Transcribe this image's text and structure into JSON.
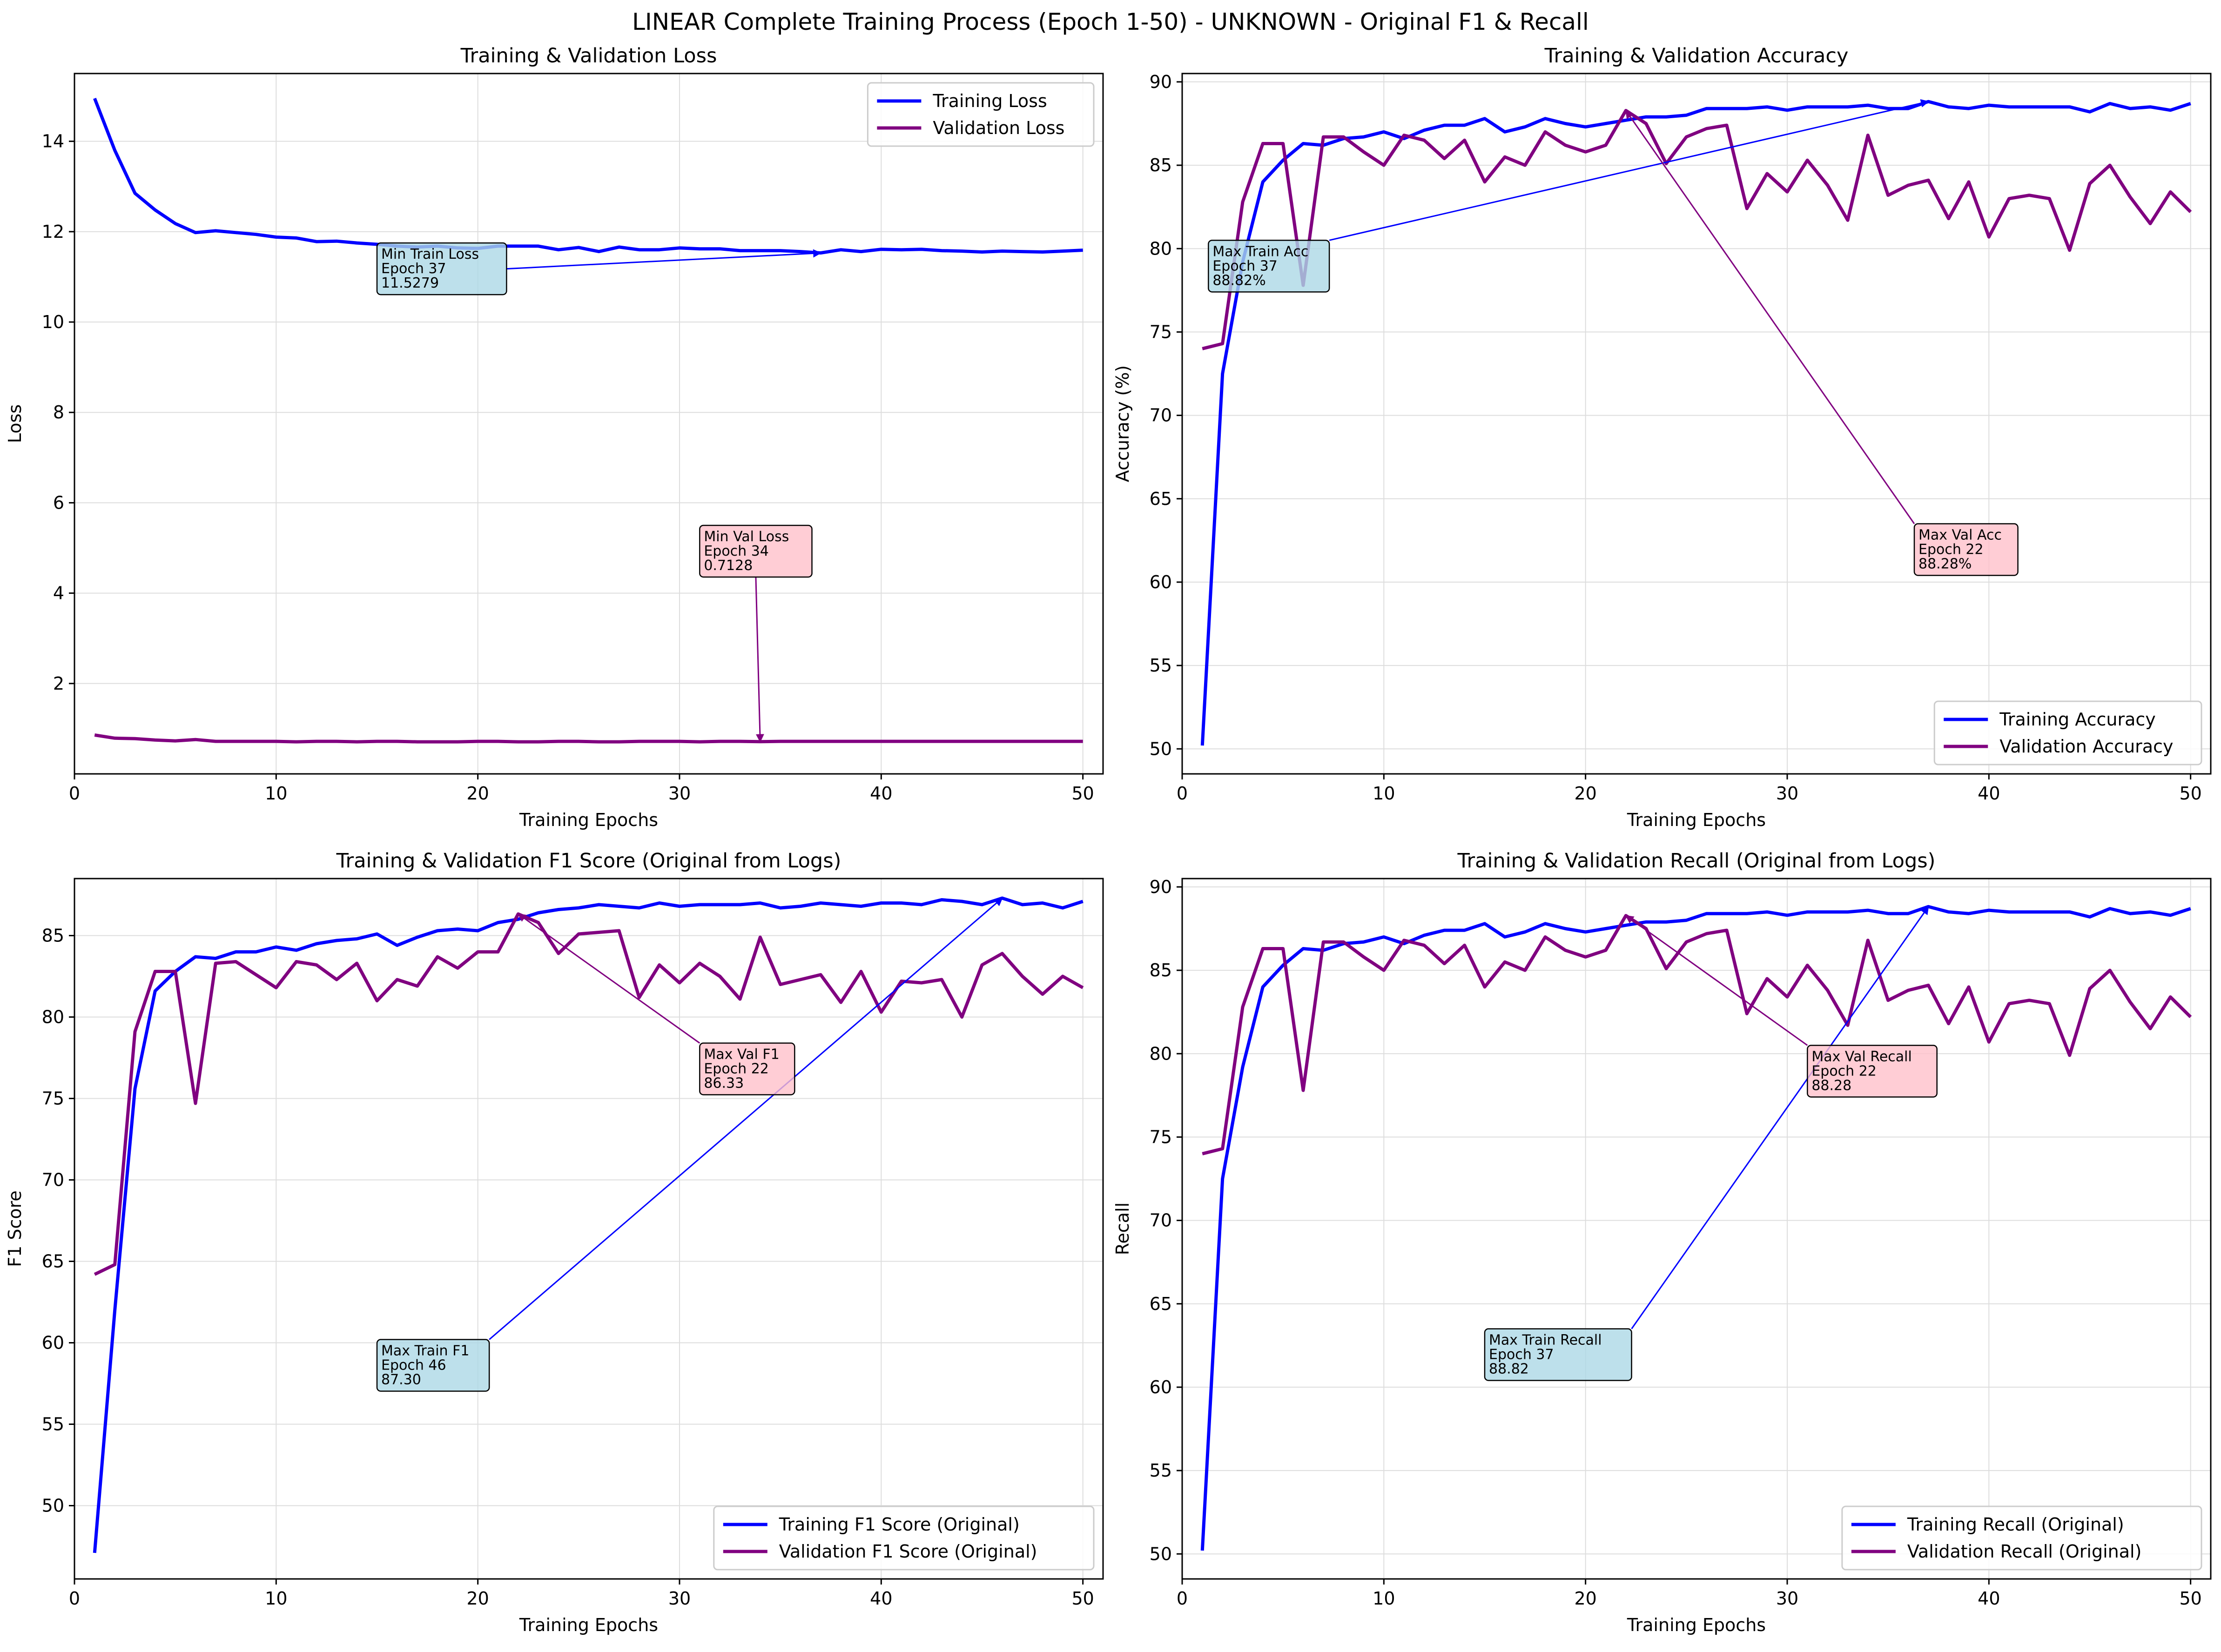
{
  "figure": {
    "suptitle": "LINEAR Complete Training Process (Epoch 1-50) - UNKNOWN - Original F1 & Recall",
    "colors": {
      "train": "#0000ff",
      "val": "#800080",
      "grid": "#dddddd",
      "annot_blue": "#add8e6",
      "annot_pink": "#ffc0cb"
    }
  },
  "chart_data": [
    {
      "type": "line",
      "title": "Training & Validation Loss",
      "xlabel": "Training Epochs",
      "ylabel": "Loss",
      "xlim": [
        0,
        51
      ],
      "ylim": [
        0,
        15.5
      ],
      "xticks": [
        0,
        10,
        20,
        30,
        40,
        50
      ],
      "yticks": [
        2,
        4,
        6,
        8,
        10,
        12,
        14
      ],
      "grid": true,
      "legend_position": "top-right",
      "series": [
        {
          "name": "Training Loss",
          "color": "#0000ff",
          "x": [
            1,
            2,
            3,
            4,
            5,
            6,
            7,
            8,
            9,
            10,
            11,
            12,
            13,
            14,
            15,
            16,
            17,
            18,
            19,
            20,
            21,
            22,
            23,
            24,
            25,
            26,
            27,
            28,
            29,
            30,
            31,
            32,
            33,
            34,
            35,
            36,
            37,
            38,
            39,
            40,
            41,
            42,
            43,
            44,
            45,
            46,
            47,
            48,
            49,
            50
          ],
          "values": [
            14.95,
            13.8,
            12.85,
            12.48,
            12.18,
            11.98,
            12.02,
            11.98,
            11.94,
            11.88,
            11.86,
            11.78,
            11.79,
            11.75,
            11.72,
            11.68,
            11.66,
            11.68,
            11.64,
            11.63,
            11.68,
            11.68,
            11.68,
            11.6,
            11.65,
            11.56,
            11.66,
            11.6,
            11.6,
            11.64,
            11.62,
            11.62,
            11.58,
            11.58,
            11.58,
            11.56,
            11.53,
            11.6,
            11.56,
            11.61,
            11.6,
            11.61,
            11.58,
            11.57,
            11.55,
            11.57,
            11.56,
            11.55,
            11.57,
            11.59
          ]
        },
        {
          "name": "Validation Loss",
          "color": "#800080",
          "x": [
            1,
            2,
            3,
            4,
            5,
            6,
            7,
            8,
            9,
            10,
            11,
            12,
            13,
            14,
            15,
            16,
            17,
            18,
            19,
            20,
            21,
            22,
            23,
            24,
            25,
            26,
            27,
            28,
            29,
            30,
            31,
            32,
            33,
            34,
            35,
            36,
            37,
            38,
            39,
            40,
            41,
            42,
            43,
            44,
            45,
            46,
            47,
            48,
            49,
            50
          ],
          "values": [
            0.86,
            0.79,
            0.78,
            0.75,
            0.73,
            0.76,
            0.72,
            0.72,
            0.72,
            0.72,
            0.71,
            0.72,
            0.72,
            0.71,
            0.72,
            0.72,
            0.71,
            0.71,
            0.71,
            0.72,
            0.72,
            0.71,
            0.71,
            0.72,
            0.72,
            0.71,
            0.71,
            0.72,
            0.72,
            0.72,
            0.71,
            0.72,
            0.72,
            0.7128,
            0.72,
            0.72,
            0.72,
            0.72,
            0.72,
            0.72,
            0.72,
            0.72,
            0.72,
            0.72,
            0.72,
            0.72,
            0.72,
            0.72,
            0.72,
            0.72
          ]
        }
      ],
      "annotations": [
        {
          "lines": [
            "Min Train Loss",
            "Epoch 37",
            "11.5279"
          ],
          "style": "blue",
          "target": [
            37,
            11.5279
          ],
          "box_anchor": [
            15,
            11.75
          ]
        },
        {
          "lines": [
            "Min Val Loss",
            "Epoch 34",
            "0.7128"
          ],
          "style": "pink",
          "target": [
            34,
            0.7128
          ],
          "box_anchor": [
            31,
            5.5
          ]
        }
      ]
    },
    {
      "type": "line",
      "title": "Training & Validation Accuracy",
      "xlabel": "Training Epochs",
      "ylabel": "Accuracy (%)",
      "xlim": [
        0,
        51
      ],
      "ylim": [
        48.5,
        90.5
      ],
      "xticks": [
        0,
        10,
        20,
        30,
        40,
        50
      ],
      "yticks": [
        50,
        55,
        60,
        65,
        70,
        75,
        80,
        85,
        90
      ],
      "grid": true,
      "legend_position": "bottom-right",
      "series": [
        {
          "name": "Training Accuracy",
          "color": "#0000ff",
          "x": [
            1,
            2,
            3,
            4,
            5,
            6,
            7,
            8,
            9,
            10,
            11,
            12,
            13,
            14,
            15,
            16,
            17,
            18,
            19,
            20,
            21,
            22,
            23,
            24,
            25,
            26,
            27,
            28,
            29,
            30,
            31,
            32,
            33,
            34,
            35,
            36,
            37,
            38,
            39,
            40,
            41,
            42,
            43,
            44,
            45,
            46,
            47,
            48,
            49,
            50
          ],
          "values": [
            50.2,
            72.5,
            79.2,
            84.0,
            85.3,
            86.3,
            86.2,
            86.6,
            86.7,
            87.0,
            86.6,
            87.1,
            87.4,
            87.4,
            87.8,
            87.0,
            87.3,
            87.8,
            87.5,
            87.3,
            87.5,
            87.7,
            87.9,
            87.9,
            88.0,
            88.4,
            88.4,
            88.4,
            88.5,
            88.3,
            88.5,
            88.5,
            88.5,
            88.6,
            88.4,
            88.4,
            88.82,
            88.5,
            88.4,
            88.6,
            88.5,
            88.5,
            88.5,
            88.5,
            88.2,
            88.7,
            88.4,
            88.5,
            88.3,
            88.7
          ]
        },
        {
          "name": "Validation Accuracy",
          "color": "#800080",
          "x": [
            1,
            2,
            3,
            4,
            5,
            6,
            7,
            8,
            9,
            10,
            11,
            12,
            13,
            14,
            15,
            16,
            17,
            18,
            19,
            20,
            21,
            22,
            23,
            24,
            25,
            26,
            27,
            28,
            29,
            30,
            31,
            32,
            33,
            34,
            35,
            36,
            37,
            38,
            39,
            40,
            41,
            42,
            43,
            44,
            45,
            46,
            47,
            48,
            49,
            50
          ],
          "values": [
            74.0,
            74.3,
            82.8,
            86.3,
            86.3,
            77.8,
            86.7,
            86.7,
            85.8,
            85.0,
            86.8,
            86.5,
            85.4,
            86.5,
            84.0,
            85.5,
            85.0,
            87.0,
            86.2,
            85.8,
            86.2,
            88.28,
            87.5,
            85.1,
            86.7,
            87.2,
            87.4,
            82.4,
            84.5,
            83.4,
            85.3,
            83.8,
            81.7,
            86.8,
            83.2,
            83.8,
            84.1,
            81.8,
            84.0,
            80.7,
            83.0,
            83.2,
            83.0,
            79.9,
            83.9,
            85.0,
            83.1,
            81.5,
            83.4,
            82.2
          ]
        }
      ],
      "annotations": [
        {
          "lines": [
            "Max Train Acc",
            "Epoch 37",
            "88.82%"
          ],
          "style": "blue",
          "target": [
            37,
            88.82
          ],
          "box_anchor": [
            1.3,
            80.5
          ]
        },
        {
          "lines": [
            "Max Val Acc",
            "Epoch 22",
            "88.28%"
          ],
          "style": "pink",
          "target": [
            22,
            88.28
          ],
          "box_anchor": [
            36.3,
            63.5
          ]
        }
      ]
    },
    {
      "type": "line",
      "title": "Training & Validation F1 Score (Original from Logs)",
      "xlabel": "Training Epochs",
      "ylabel": "F1 Score",
      "xlim": [
        0,
        51
      ],
      "ylim": [
        45.5,
        88.5
      ],
      "xticks": [
        0,
        10,
        20,
        30,
        40,
        50
      ],
      "yticks": [
        50,
        55,
        60,
        65,
        70,
        75,
        80,
        85
      ],
      "grid": true,
      "legend_position": "bottom-right",
      "series": [
        {
          "name": "Training F1 Score (Original)",
          "color": "#0000ff",
          "x": [
            1,
            2,
            3,
            4,
            5,
            6,
            7,
            8,
            9,
            10,
            11,
            12,
            13,
            14,
            15,
            16,
            17,
            18,
            19,
            20,
            21,
            22,
            23,
            24,
            25,
            26,
            27,
            28,
            29,
            30,
            31,
            32,
            33,
            34,
            35,
            36,
            37,
            38,
            39,
            40,
            41,
            42,
            43,
            44,
            45,
            46,
            47,
            48,
            49,
            50
          ],
          "values": [
            47.1,
            62.0,
            75.6,
            81.6,
            82.8,
            83.7,
            83.6,
            84.0,
            84.0,
            84.3,
            84.1,
            84.5,
            84.7,
            84.8,
            85.1,
            84.4,
            84.9,
            85.3,
            85.4,
            85.3,
            85.8,
            86.0,
            86.4,
            86.6,
            86.7,
            86.9,
            86.8,
            86.7,
            87.0,
            86.8,
            86.9,
            86.9,
            86.9,
            87.0,
            86.7,
            86.8,
            87.0,
            86.9,
            86.8,
            87.0,
            87.0,
            86.9,
            87.2,
            87.1,
            86.9,
            87.3,
            86.9,
            87.0,
            86.7,
            87.1
          ]
        },
        {
          "name": "Validation F1 Score (Original)",
          "color": "#800080",
          "x": [
            1,
            2,
            3,
            4,
            5,
            6,
            7,
            8,
            9,
            10,
            11,
            12,
            13,
            14,
            15,
            16,
            17,
            18,
            19,
            20,
            21,
            22,
            23,
            24,
            25,
            26,
            27,
            28,
            29,
            30,
            31,
            32,
            33,
            34,
            35,
            36,
            37,
            38,
            39,
            40,
            41,
            42,
            43,
            44,
            45,
            46,
            47,
            48,
            49,
            50
          ],
          "values": [
            64.2,
            64.8,
            79.1,
            82.8,
            82.8,
            74.7,
            83.3,
            83.4,
            82.6,
            81.8,
            83.4,
            83.2,
            82.3,
            83.3,
            81.0,
            82.3,
            81.9,
            83.7,
            83.0,
            84.0,
            84.0,
            86.33,
            85.8,
            83.9,
            85.1,
            85.2,
            85.3,
            81.2,
            83.2,
            82.1,
            83.3,
            82.5,
            81.1,
            84.9,
            82.0,
            82.3,
            82.6,
            80.9,
            82.8,
            80.3,
            82.2,
            82.1,
            82.3,
            80.0,
            83.2,
            83.9,
            82.5,
            81.4,
            82.5,
            81.8
          ]
        }
      ],
      "annotations": [
        {
          "lines": [
            "Max Train F1",
            "Epoch 46",
            "87.30"
          ],
          "style": "blue",
          "target": [
            46,
            87.3
          ],
          "box_anchor": [
            15,
            60.2
          ]
        },
        {
          "lines": [
            "Max Val F1",
            "Epoch 22",
            "86.33"
          ],
          "style": "pink",
          "target": [
            22,
            86.33
          ],
          "box_anchor": [
            31,
            78.4
          ]
        }
      ]
    },
    {
      "type": "line",
      "title": "Training & Validation Recall (Original from Logs)",
      "xlabel": "Training Epochs",
      "ylabel": "Recall",
      "xlim": [
        0,
        51
      ],
      "ylim": [
        48.5,
        90.5
      ],
      "xticks": [
        0,
        10,
        20,
        30,
        40,
        50
      ],
      "yticks": [
        50,
        55,
        60,
        65,
        70,
        75,
        80,
        85,
        90
      ],
      "grid": true,
      "legend_position": "bottom-right",
      "series": [
        {
          "name": "Training Recall (Original)",
          "color": "#0000ff",
          "x": [
            1,
            2,
            3,
            4,
            5,
            6,
            7,
            8,
            9,
            10,
            11,
            12,
            13,
            14,
            15,
            16,
            17,
            18,
            19,
            20,
            21,
            22,
            23,
            24,
            25,
            26,
            27,
            28,
            29,
            30,
            31,
            32,
            33,
            34,
            35,
            36,
            37,
            38,
            39,
            40,
            41,
            42,
            43,
            44,
            45,
            46,
            47,
            48,
            49,
            50
          ],
          "values": [
            50.2,
            72.5,
            79.2,
            84.0,
            85.3,
            86.3,
            86.2,
            86.6,
            86.7,
            87.0,
            86.6,
            87.1,
            87.4,
            87.4,
            87.8,
            87.0,
            87.3,
            87.8,
            87.5,
            87.3,
            87.5,
            87.7,
            87.9,
            87.9,
            88.0,
            88.4,
            88.4,
            88.4,
            88.5,
            88.3,
            88.5,
            88.5,
            88.5,
            88.6,
            88.4,
            88.4,
            88.82,
            88.5,
            88.4,
            88.6,
            88.5,
            88.5,
            88.5,
            88.5,
            88.2,
            88.7,
            88.4,
            88.5,
            88.3,
            88.7
          ]
        },
        {
          "name": "Validation Recall (Original)",
          "color": "#800080",
          "x": [
            1,
            2,
            3,
            4,
            5,
            6,
            7,
            8,
            9,
            10,
            11,
            12,
            13,
            14,
            15,
            16,
            17,
            18,
            19,
            20,
            21,
            22,
            23,
            24,
            25,
            26,
            27,
            28,
            29,
            30,
            31,
            32,
            33,
            34,
            35,
            36,
            37,
            38,
            39,
            40,
            41,
            42,
            43,
            44,
            45,
            46,
            47,
            48,
            49,
            50
          ],
          "values": [
            74.0,
            74.3,
            82.8,
            86.3,
            86.3,
            77.8,
            86.7,
            86.7,
            85.8,
            85.0,
            86.8,
            86.5,
            85.4,
            86.5,
            84.0,
            85.5,
            85.0,
            87.0,
            86.2,
            85.8,
            86.2,
            88.28,
            87.5,
            85.1,
            86.7,
            87.2,
            87.4,
            82.4,
            84.5,
            83.4,
            85.3,
            83.8,
            81.7,
            86.8,
            83.2,
            83.8,
            84.1,
            81.8,
            84.0,
            80.7,
            83.0,
            83.2,
            83.0,
            79.9,
            83.9,
            85.0,
            83.1,
            81.5,
            83.4,
            82.2
          ]
        }
      ],
      "annotations": [
        {
          "lines": [
            "Max Train Recall",
            "Epoch 37",
            "88.82"
          ],
          "style": "blue",
          "target": [
            37,
            88.82
          ],
          "box_anchor": [
            15,
            63.5
          ]
        },
        {
          "lines": [
            "Max Val Recall",
            "Epoch 22",
            "88.28"
          ],
          "style": "pink",
          "target": [
            22,
            88.28
          ],
          "box_anchor": [
            31,
            80.5
          ]
        }
      ]
    }
  ]
}
